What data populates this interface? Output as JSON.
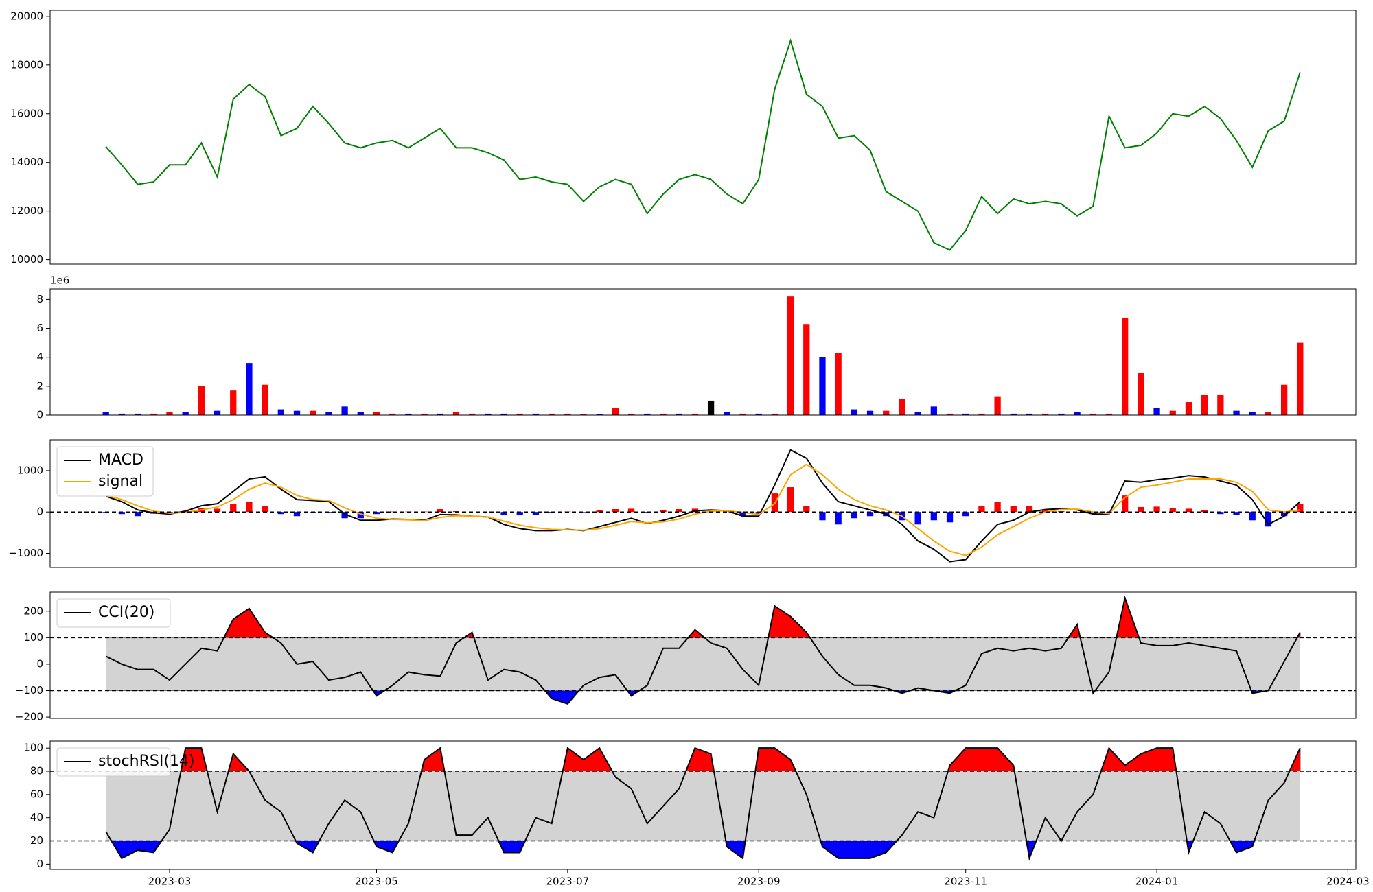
{
  "chart_data": [
    {
      "type": "line",
      "color": "green",
      "values": [
        null,
        null,
        null,
        14650,
        13900,
        13100,
        13200,
        13900,
        13900,
        14800,
        13400,
        16600,
        17200,
        16700,
        15100,
        15400,
        16300,
        15600,
        14800,
        14600,
        14800,
        14900,
        14600,
        15000,
        15400,
        14600,
        14600,
        14400,
        14100,
        13300,
        13400,
        13200,
        13100,
        12400,
        13000,
        13300,
        13100,
        11900,
        12700,
        13300,
        13500,
        13300,
        12700,
        12300,
        13300,
        17000,
        19000,
        16800,
        16300,
        15000,
        15100,
        14500,
        12800,
        12400,
        12000,
        10700,
        10400,
        11200,
        12600,
        11900,
        12500,
        12300,
        12400,
        12300,
        11800,
        12200,
        15900,
        14600,
        14700,
        15200,
        16000,
        15900,
        16300,
        15800,
        14900,
        13800,
        15300,
        15700,
        17700,
        null,
        null,
        null
      ],
      "ylim": [
        9820,
        20250
      ],
      "yticks": [
        10000,
        12000,
        14000,
        16000,
        18000,
        20000
      ]
    },
    {
      "type": "bar",
      "offset_label": "1e6",
      "values": [
        null,
        null,
        null,
        0.2,
        0.1,
        0.1,
        0.1,
        0.2,
        0.2,
        2.0,
        0.3,
        1.7,
        3.6,
        2.1,
        0.4,
        0.3,
        0.3,
        0.2,
        0.6,
        0.2,
        0.2,
        0.1,
        0.1,
        0.1,
        0.1,
        0.2,
        0.1,
        0.1,
        0.1,
        0.1,
        0.1,
        0.1,
        0.1,
        0.05,
        0.05,
        0.5,
        0.1,
        0.1,
        0.1,
        0.1,
        0.1,
        1.0,
        0.2,
        0.1,
        0.1,
        0.1,
        8.2,
        6.3,
        4.0,
        4.3,
        0.4,
        0.3,
        0.3,
        1.1,
        0.2,
        0.6,
        0.1,
        0.1,
        0.1,
        1.3,
        0.1,
        0.1,
        0.1,
        0.1,
        0.2,
        0.1,
        0.1,
        6.7,
        2.9,
        0.5,
        0.3,
        0.9,
        1.4,
        1.4,
        0.3,
        0.2,
        0.2,
        2.1,
        5.0,
        null,
        null,
        null
      ],
      "colors": [
        null,
        null,
        null,
        "blue",
        "blue",
        "blue",
        "red",
        "red",
        "blue",
        "red",
        "blue",
        "red",
        "blue",
        "red",
        "blue",
        "blue",
        "red",
        "blue",
        "blue",
        "blue",
        "red",
        "red",
        "blue",
        "red",
        "blue",
        "red",
        "red",
        "blue",
        "blue",
        "red",
        "blue",
        "red",
        "red",
        "red",
        "blue",
        "red",
        "red",
        "blue",
        "red",
        "blue",
        "red",
        "black",
        "blue",
        "red",
        "blue",
        "red",
        "red",
        "red",
        "blue",
        "red",
        "blue",
        "blue",
        "red",
        "red",
        "blue",
        "blue",
        "red",
        "blue",
        "red",
        "red",
        "blue",
        "blue",
        "red",
        "blue",
        "blue",
        "red",
        "red",
        "red",
        "red",
        "blue",
        "red",
        "red",
        "red",
        "red",
        "blue",
        "blue",
        "red",
        "red",
        "red",
        null,
        null,
        null
      ],
      "ylim": [
        0,
        8.73
      ],
      "yticks": [
        0,
        2,
        4,
        6,
        8
      ]
    },
    {
      "type": "line",
      "series": [
        {
          "name": "MACD",
          "color": "black",
          "values": [
            null,
            null,
            null,
            380,
            250,
            50,
            -20,
            -50,
            20,
            150,
            200,
            500,
            800,
            850,
            550,
            300,
            280,
            250,
            -50,
            -200,
            -200,
            -170,
            -180,
            -200,
            -60,
            -70,
            -100,
            -120,
            -300,
            -400,
            -450,
            -450,
            -420,
            -450,
            -350,
            -250,
            -150,
            -280,
            -200,
            -100,
            30,
            50,
            30,
            -100,
            -100,
            650,
            1500,
            1300,
            700,
            250,
            150,
            50,
            -50,
            -300,
            -700,
            -900,
            -1200,
            -1150,
            -700,
            -300,
            -200,
            0,
            60,
            80,
            50,
            -50,
            -50,
            750,
            720,
            780,
            820,
            880,
            850,
            750,
            650,
            300,
            -300,
            -100,
            250,
            null,
            null,
            null
          ]
        },
        {
          "name": "signal",
          "color": "orange",
          "values": [
            null,
            null,
            null,
            400,
            300,
            150,
            20,
            -30,
            -10,
            50,
            120,
            300,
            550,
            700,
            600,
            400,
            300,
            280,
            100,
            -50,
            -150,
            -180,
            -190,
            -210,
            -130,
            -90,
            -100,
            -120,
            -220,
            -320,
            -380,
            -420,
            -430,
            -440,
            -400,
            -320,
            -230,
            -260,
            -240,
            -170,
            -50,
            20,
            30,
            -10,
            -60,
            200,
            900,
            1150,
            900,
            550,
            300,
            150,
            50,
            -100,
            -400,
            -700,
            -950,
            -1050,
            -850,
            -550,
            -350,
            -150,
            0,
            60,
            70,
            0,
            -40,
            350,
            600,
            650,
            720,
            800,
            800,
            800,
            720,
            500,
            50,
            0,
            50,
            null,
            null,
            null
          ]
        }
      ],
      "histogram": {
        "positive_color": "red",
        "negative_color": "blue",
        "values": [
          null,
          null,
          null,
          -20,
          -50,
          -100,
          -40,
          -20,
          30,
          100,
          80,
          200,
          250,
          150,
          -50,
          -100,
          -20,
          -30,
          -150,
          -150,
          -50,
          10,
          10,
          10,
          70,
          20,
          0,
          0,
          -80,
          -80,
          -70,
          -30,
          10,
          -10,
          50,
          70,
          80,
          -20,
          40,
          70,
          80,
          30,
          0,
          -90,
          -40,
          450,
          600,
          150,
          -200,
          -300,
          -150,
          -100,
          -100,
          -200,
          -300,
          -200,
          -250,
          -100,
          150,
          250,
          150,
          150,
          60,
          20,
          -20,
          -50,
          -10,
          400,
          120,
          130,
          100,
          80,
          50,
          -50,
          -70,
          -200,
          -350,
          -100,
          200,
          null,
          null,
          null
        ]
      },
      "hlines": [
        0
      ],
      "ylim": [
        -1340,
        1745
      ],
      "yticks": [
        {
          "value": -1000,
          "label": "−1000"
        },
        0,
        1000
      ]
    },
    {
      "type": "line",
      "series": [
        {
          "name": "CCI(20)",
          "color": "black",
          "values": [
            null,
            null,
            null,
            30,
            0,
            -20,
            -20,
            -60,
            0,
            60,
            50,
            170,
            210,
            120,
            80,
            0,
            10,
            -60,
            -50,
            -30,
            -120,
            -80,
            -30,
            -40,
            -45,
            80,
            120,
            -60,
            -20,
            -30,
            -60,
            -130,
            -150,
            -80,
            -50,
            -40,
            -120,
            -80,
            60,
            60,
            130,
            80,
            60,
            -20,
            -80,
            220,
            180,
            120,
            30,
            -40,
            -80,
            -80,
            -90,
            -110,
            -90,
            -100,
            -110,
            -80,
            40,
            60,
            50,
            60,
            50,
            60,
            150,
            -110,
            -30,
            250,
            80,
            70,
            70,
            80,
            70,
            60,
            50,
            -110,
            -100,
            10,
            120,
            null,
            null,
            null
          ]
        }
      ],
      "levels": [
        -100,
        100
      ],
      "band_color": "lightgray",
      "upper_color": "red",
      "lower_color": "blue",
      "ylim": [
        -205,
        272
      ],
      "yticks": [
        {
          "value": -200,
          "label": "−200"
        },
        {
          "value": -100,
          "label": "−100"
        },
        0,
        100,
        200
      ]
    },
    {
      "type": "line",
      "series": [
        {
          "name": "stochRSI(14)",
          "color": "black",
          "values": [
            null,
            null,
            null,
            28,
            5,
            12,
            10,
            30,
            100,
            100,
            45,
            95,
            80,
            55,
            45,
            18,
            10,
            35,
            55,
            45,
            15,
            10,
            35,
            90,
            100,
            25,
            25,
            40,
            10,
            10,
            40,
            35,
            100,
            90,
            100,
            75,
            65,
            35,
            50,
            65,
            100,
            95,
            15,
            5,
            100,
            100,
            90,
            60,
            15,
            5,
            5,
            5,
            10,
            25,
            45,
            40,
            85,
            100,
            100,
            100,
            85,
            5,
            40,
            20,
            45,
            60,
            100,
            85,
            95,
            100,
            100,
            10,
            45,
            35,
            10,
            15,
            55,
            70,
            100,
            null,
            null,
            null
          ]
        }
      ],
      "levels": [
        20,
        80
      ],
      "band_color": "lightgray",
      "upper_color": "red",
      "lower_color": "blue",
      "ylim": [
        -4.5,
        106
      ],
      "yticks": [
        0,
        20,
        40,
        60,
        80,
        100
      ],
      "categories": [
        null,
        null,
        null,
        null,
        null,
        null,
        null,
        "2023-03",
        null,
        null,
        null,
        null,
        null,
        null,
        null,
        null,
        null,
        null,
        null,
        null,
        "2023-05",
        null,
        null,
        null,
        null,
        null,
        null,
        null,
        null,
        null,
        null,
        null,
        "2023-07",
        null,
        null,
        null,
        null,
        null,
        null,
        null,
        null,
        null,
        null,
        null,
        "2023-09",
        null,
        null,
        null,
        null,
        null,
        null,
        null,
        null,
        null,
        null,
        null,
        null,
        "2023-11",
        null,
        null,
        null,
        null,
        null,
        null,
        null,
        null,
        null,
        null,
        null,
        "2024-01",
        null,
        null,
        null,
        null,
        null,
        null,
        null,
        null,
        null,
        null,
        null,
        "2024-03"
      ]
    }
  ]
}
